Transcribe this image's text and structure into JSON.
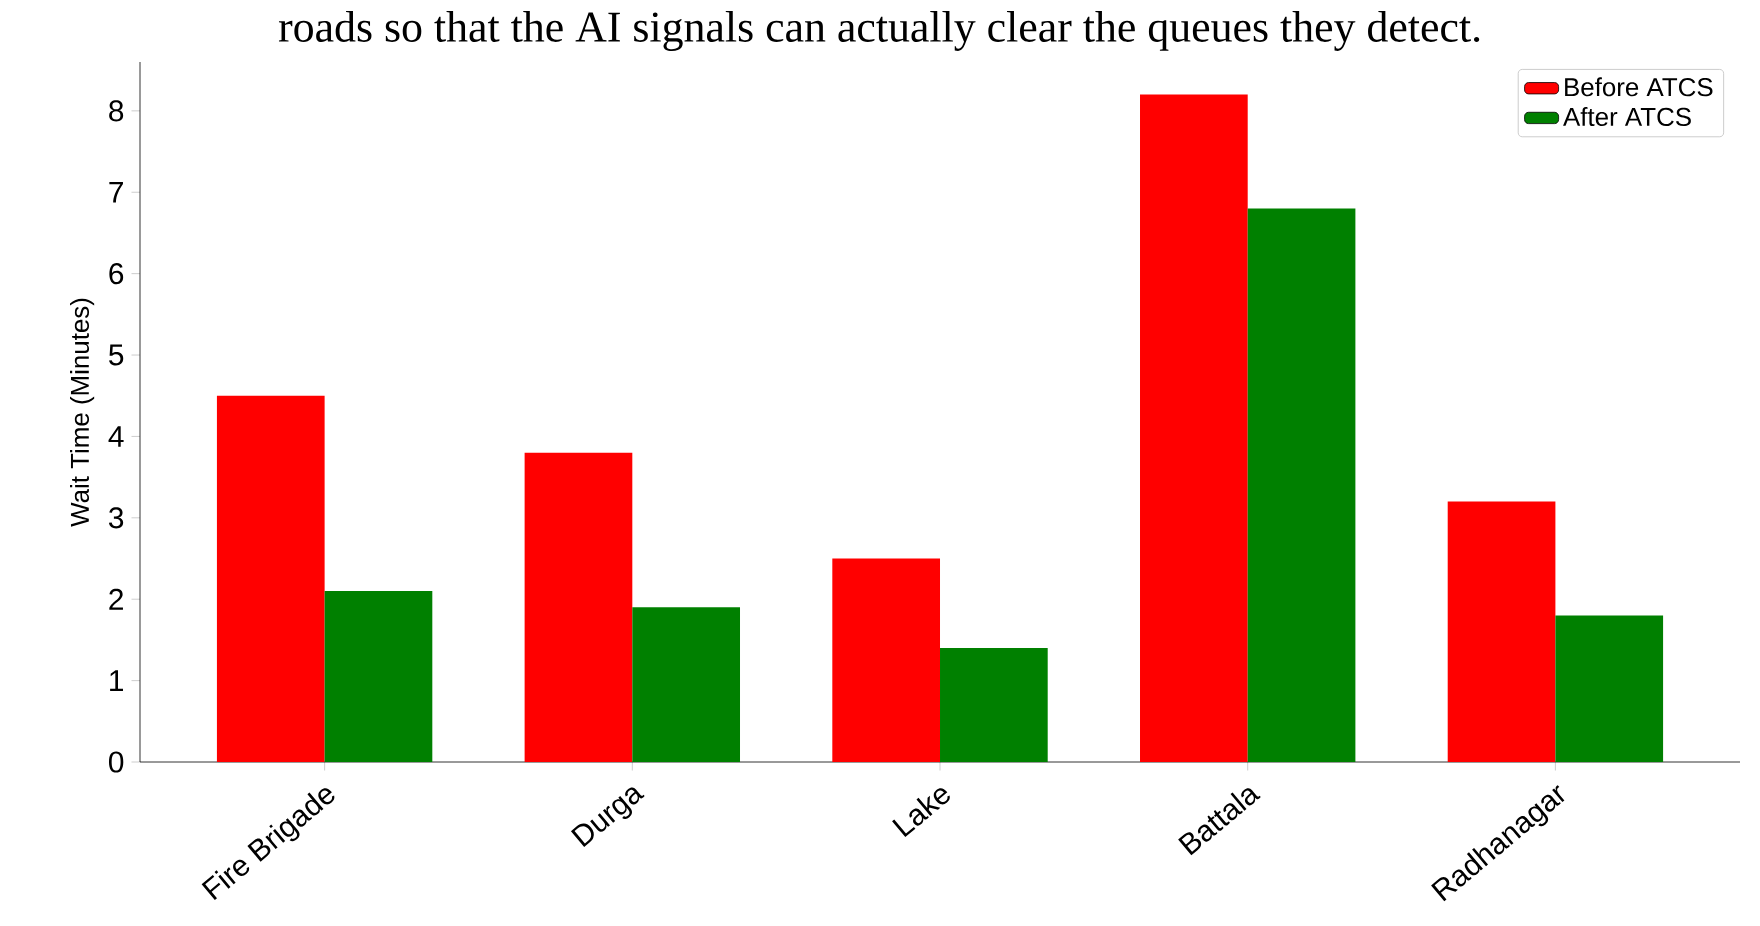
{
  "chart_data": {
    "type": "bar",
    "annotations": [
      "roads so that the AI signals can actually clear the queues they detect."
    ],
    "categories": [
      "Fire Brigade",
      "Durga",
      "Lake",
      "Battala",
      "Radhanagar"
    ],
    "ylabel": "Wait Time (Minutes)",
    "series": [
      {
        "name": "Before ATCS",
        "color": "#ff0000",
        "values": [
          4.5,
          3.8,
          2.5,
          8.2,
          3.2
        ]
      },
      {
        "name": "After ATCS",
        "color": "#008000",
        "values": [
          2.1,
          1.9,
          1.4,
          6.8,
          1.8
        ]
      }
    ],
    "ylim": [
      0,
      8.6
    ],
    "yticks": [
      0,
      1,
      2,
      3,
      4,
      5,
      6,
      7,
      8
    ],
    "legend": "top right",
    "grid": false
  }
}
